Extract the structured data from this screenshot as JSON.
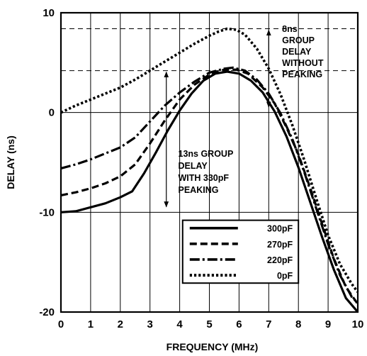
{
  "chart_data": {
    "type": "line",
    "xlabel": "FREQUENCY (MHz)",
    "ylabel": "DELAY (ns)",
    "xlim": [
      0,
      10
    ],
    "ylim": [
      -20,
      10
    ],
    "x_ticks": [
      "0",
      "1",
      "2",
      "3",
      "4",
      "5",
      "6",
      "7",
      "8",
      "9",
      "10"
    ],
    "y_ticks": [
      "10",
      "0",
      "-10",
      "-20"
    ],
    "grid": "vertical lines every 1 MHz; horizontal lines at 0 and -10 ns; dashed horizontal reference lines at 8.4 and 4.2 ns",
    "reference_lines_y": [
      8.4,
      4.2
    ],
    "legend_position": "lower-right",
    "annotations": [
      {
        "lines": [
          "8ns",
          "GROUP",
          "DELAY",
          "WITHOUT",
          "PEAKING"
        ],
        "arrow_x": 7.0,
        "arrow_from": 8.4,
        "arrow_to": 0.4
      },
      {
        "lines": [
          "13ns GROUP",
          "DELAY",
          "WITH 330pF",
          "PEAKING"
        ],
        "arrow_x": 3.55,
        "arrow_from": 4.2,
        "arrow_to": -9.6
      }
    ],
    "series": [
      {
        "name": "300pF",
        "style": "solid",
        "x": [
          0,
          0.5,
          1,
          1.5,
          2,
          2.4,
          2.8,
          3.2,
          3.6,
          4,
          4.4,
          4.8,
          5.2,
          5.6,
          6,
          6.4,
          6.8,
          7.2,
          7.6,
          8,
          8.4,
          8.8,
          9.2,
          9.6,
          10
        ],
        "y": [
          -10,
          -9.9,
          -9.5,
          -9.1,
          -8.5,
          -7.9,
          -6.1,
          -4,
          -1.8,
          0.2,
          1.9,
          3.2,
          3.9,
          4.1,
          3.9,
          3.2,
          2,
          0.1,
          -2.4,
          -5.5,
          -9,
          -12.5,
          -15.8,
          -18.6,
          -20
        ]
      },
      {
        "name": "270pF",
        "style": "dashed",
        "x": [
          0,
          0.5,
          1,
          1.5,
          2,
          2.5,
          3,
          3.5,
          4,
          4.5,
          5,
          5.5,
          5.9,
          6.3,
          6.8,
          7.2,
          7.6,
          8,
          8.4,
          8.8,
          9.2,
          9.6,
          10
        ],
        "y": [
          -8.3,
          -8,
          -7.6,
          -7.1,
          -6.4,
          -5.2,
          -3.1,
          -0.8,
          1.3,
          2.8,
          3.8,
          4.3,
          4.3,
          3.9,
          2.5,
          0.9,
          -1.5,
          -4.2,
          -7.6,
          -11.2,
          -14.7,
          -17.5,
          -19.2
        ]
      },
      {
        "name": "220pF",
        "style": "dash-dot",
        "x": [
          0,
          0.5,
          1,
          1.5,
          2,
          2.5,
          3,
          3.5,
          4,
          4.5,
          5,
          5.5,
          5.8,
          6.2,
          6.6,
          7,
          7.4,
          7.8,
          8.2,
          8.6,
          9,
          9.4,
          9.8,
          10
        ],
        "y": [
          -5.6,
          -5.2,
          -4.7,
          -4.1,
          -3.5,
          -2.5,
          -0.9,
          0.7,
          2,
          3.1,
          4,
          4.4,
          4.5,
          4.2,
          3.3,
          1.9,
          -0.1,
          -2.7,
          -6,
          -9.6,
          -13.2,
          -16.3,
          -18.5,
          -19.1
        ]
      },
      {
        "name": "0pF",
        "style": "dotted",
        "x": [
          0,
          0.5,
          1,
          1.5,
          2,
          2.5,
          3,
          3.5,
          4,
          4.5,
          5,
          5.3,
          5.6,
          5.9,
          6.2,
          6.6,
          7,
          7.4,
          7.8,
          8.2,
          8.6,
          9,
          9.4,
          9.8,
          10
        ],
        "y": [
          0,
          0.7,
          1.3,
          1.9,
          2.5,
          3.3,
          4.2,
          5.1,
          6,
          6.9,
          7.7,
          8.1,
          8.4,
          8.3,
          7.8,
          6.4,
          4.4,
          1.8,
          -1.3,
          -4.8,
          -8.6,
          -12.3,
          -15.2,
          -17.2,
          -18
        ]
      }
    ]
  }
}
